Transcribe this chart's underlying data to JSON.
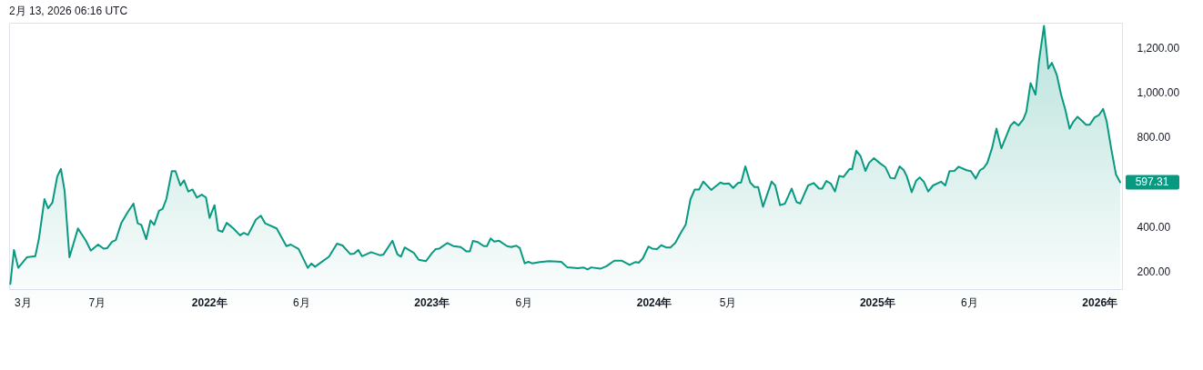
{
  "chart_data": {
    "type": "area",
    "title": "2月 13, 2026 06:16 UTC",
    "x": [
      "2021-02-09",
      "2021-02-15",
      "2021-02-22",
      "2021-03-08",
      "2021-03-22",
      "2021-03-28",
      "2021-04-06",
      "2021-04-12",
      "2021-04-19",
      "2021-04-27",
      "2021-05-03",
      "2021-05-09",
      "2021-05-17",
      "2021-05-31",
      "2021-06-13",
      "2021-06-21",
      "2021-07-03",
      "2021-07-12",
      "2021-07-18",
      "2021-07-26",
      "2021-08-01",
      "2021-08-10",
      "2021-08-20",
      "2021-08-30",
      "2021-09-06",
      "2021-09-12",
      "2021-09-20",
      "2021-09-27",
      "2021-10-03",
      "2021-10-11",
      "2021-10-17",
      "2021-10-23",
      "2021-11-01",
      "2021-11-07",
      "2021-11-15",
      "2021-11-21",
      "2021-11-28",
      "2021-12-05",
      "2021-12-12",
      "2021-12-20",
      "2021-12-27",
      "2022-01-02",
      "2022-01-10",
      "2022-01-16",
      "2022-01-23",
      "2022-01-30",
      "2022-02-10",
      "2022-02-21",
      "2022-02-27",
      "2022-03-06",
      "2022-03-19",
      "2022-03-27",
      "2022-04-03",
      "2022-04-22",
      "2022-05-08",
      "2022-05-15",
      "2022-05-28",
      "2022-06-12",
      "2022-06-18",
      "2022-06-24",
      "2022-07-17",
      "2022-07-30",
      "2022-08-08",
      "2022-08-21",
      "2022-08-27",
      "2022-09-03",
      "2022-09-09",
      "2022-09-24",
      "2022-10-09",
      "2022-10-14",
      "2022-10-29",
      "2022-11-06",
      "2022-11-12",
      "2022-11-18",
      "2022-12-03",
      "2022-12-11",
      "2022-12-23",
      "2023-01-01",
      "2023-01-08",
      "2023-01-14",
      "2023-01-27",
      "2023-02-06",
      "2023-02-18",
      "2023-02-27",
      "2023-03-05",
      "2023-03-10",
      "2023-03-18",
      "2023-03-28",
      "2023-04-02",
      "2023-04-08",
      "2023-04-14",
      "2023-04-22",
      "2023-05-05",
      "2023-05-12",
      "2023-05-20",
      "2023-05-26",
      "2023-06-03",
      "2023-06-09",
      "2023-06-15",
      "2023-06-28",
      "2023-07-13",
      "2023-08-02",
      "2023-08-12",
      "2023-08-29",
      "2023-09-08",
      "2023-09-14",
      "2023-09-20",
      "2023-10-05",
      "2023-10-15",
      "2023-10-28",
      "2023-11-09",
      "2023-11-22",
      "2023-12-02",
      "2023-12-07",
      "2023-12-14",
      "2023-12-23",
      "2023-12-29",
      "2024-01-06",
      "2024-01-13",
      "2024-01-21",
      "2024-01-28",
      "2024-02-05",
      "2024-02-14",
      "2024-02-22",
      "2024-03-01",
      "2024-03-08",
      "2024-03-15",
      "2024-03-22",
      "2024-04-04",
      "2024-04-19",
      "2024-04-25",
      "2024-05-03",
      "2024-05-10",
      "2024-05-18",
      "2024-05-23",
      "2024-05-30",
      "2024-06-07",
      "2024-06-14",
      "2024-06-20",
      "2024-06-28",
      "2024-07-12",
      "2024-07-18",
      "2024-07-26",
      "2024-08-03",
      "2024-08-14",
      "2024-08-22",
      "2024-08-28",
      "2024-09-10",
      "2024-09-19",
      "2024-09-28",
      "2024-10-03",
      "2024-10-10",
      "2024-10-17",
      "2024-10-24",
      "2024-10-31",
      "2024-11-07",
      "2024-11-17",
      "2024-11-21",
      "2024-11-28",
      "2024-12-05",
      "2024-12-13",
      "2024-12-19",
      "2024-12-27",
      "2025-01-06",
      "2025-01-15",
      "2025-01-23",
      "2025-01-30",
      "2025-02-07",
      "2025-02-14",
      "2025-02-19",
      "2025-02-27",
      "2025-03-06",
      "2025-03-12",
      "2025-03-19",
      "2025-03-26",
      "2025-04-03",
      "2025-04-16",
      "2025-04-23",
      "2025-04-30",
      "2025-05-08",
      "2025-05-15",
      "2025-05-28",
      "2025-06-04",
      "2025-06-12",
      "2025-06-19",
      "2025-06-25",
      "2025-07-01",
      "2025-07-09",
      "2025-07-16",
      "2025-07-24",
      "2025-08-01",
      "2025-08-08",
      "2025-08-14",
      "2025-08-21",
      "2025-08-29",
      "2025-09-03",
      "2025-09-10",
      "2025-09-18",
      "2025-09-24",
      "2025-10-02",
      "2025-10-09",
      "2025-10-15",
      "2025-10-23",
      "2025-10-30",
      "2025-11-06",
      "2025-11-13",
      "2025-11-19",
      "2025-11-26",
      "2025-12-04",
      "2025-12-10",
      "2025-12-16",
      "2025-12-24",
      "2025-12-31",
      "2026-01-07",
      "2026-01-13",
      "2026-01-20",
      "2026-01-28",
      "2026-02-04"
    ],
    "series": [
      {
        "color": "#089981",
        "values": [
          143,
          295,
          215,
          262,
          267,
          346,
          522,
          481,
          506,
          623,
          657,
          560,
          262,
          391,
          336,
          292,
          319,
          301,
          303,
          332,
          339,
          414,
          461,
          502,
          414,
          407,
          343,
          427,
          407,
          470,
          479,
          522,
          647,
          647,
          583,
          606,
          556,
          565,
          529,
          542,
          529,
          438,
          495,
          383,
          376,
          416,
          391,
          360,
          371,
          362,
          431,
          448,
          414,
          391,
          312,
          319,
          299,
          215,
          234,
          220,
          265,
          323,
          315,
          276,
          278,
          295,
          267,
          285,
          271,
          274,
          336,
          276,
          265,
          306,
          282,
          251,
          245,
          278,
          299,
          301,
          326,
          312,
          308,
          289,
          289,
          335,
          330,
          312,
          312,
          346,
          332,
          336,
          312,
          308,
          314,
          303,
          235,
          242,
          235,
          241,
          245,
          242,
          217,
          213,
          216,
          208,
          217,
          211,
          222,
          247,
          247,
          228,
          241,
          238,
          258,
          310,
          301,
          299,
          316,
          306,
          306,
          326,
          371,
          407,
          522,
          565,
          565,
          600,
          563,
          596,
          590,
          592,
          572,
          594,
          596,
          668,
          596,
          576,
          576,
          488,
          600,
          583,
          495,
          502,
          569,
          509,
          502,
          583,
          594,
          569,
          569,
          603,
          592,
          556,
          626,
          621,
          657,
          655,
          738,
          714,
          648,
          684,
          705,
          682,
          664,
          617,
          614,
          668,
          651,
          623,
          553,
          603,
          619,
          599,
          556,
          583,
          600,
          583,
          647,
          648,
          667,
          651,
          647,
          614,
          651,
          661,
          684,
          752,
          837,
          749,
          803,
          850,
          867,
          851,
          878,
          912,
          1040,
          989,
          1144,
          1296,
          1105,
          1131,
          1077,
          989,
          921,
          837,
          867,
          890,
          870,
          854,
          854,
          887,
          897,
          925,
          867,
          752,
          633,
          597.31
        ]
      }
    ],
    "xlim": [
      "2021-02-07",
      "2026-02-07"
    ],
    "ylim": [
      120,
      1310
    ],
    "xticks": [
      {
        "value": "2021-03-01",
        "label": "3月"
      },
      {
        "value": "2021-07-01",
        "label": "7月"
      },
      {
        "value": "2022-01-01",
        "label": "2022年"
      },
      {
        "value": "2022-06-01",
        "label": "6月"
      },
      {
        "value": "2023-01-01",
        "label": "2023年"
      },
      {
        "value": "2023-06-01",
        "label": "6月"
      },
      {
        "value": "2024-01-01",
        "label": "2024年"
      },
      {
        "value": "2024-05-01",
        "label": "5月"
      },
      {
        "value": "2025-01-01",
        "label": "2025年"
      },
      {
        "value": "2025-06-01",
        "label": "6月"
      },
      {
        "value": "2026-01-01",
        "label": "2026年"
      }
    ],
    "yticks": [
      {
        "value": 200,
        "label": "200.00"
      },
      {
        "value": 400,
        "label": "400.00"
      },
      {
        "value": 800,
        "label": "800.00"
      },
      {
        "value": 1000,
        "label": "1,000.00"
      },
      {
        "value": 1200,
        "label": "1,200.00"
      }
    ],
    "annotations": [
      {
        "text": "597.31",
        "x": "2026-02-04",
        "y": 597.31
      }
    ],
    "line_style": "solid",
    "grid": false
  }
}
